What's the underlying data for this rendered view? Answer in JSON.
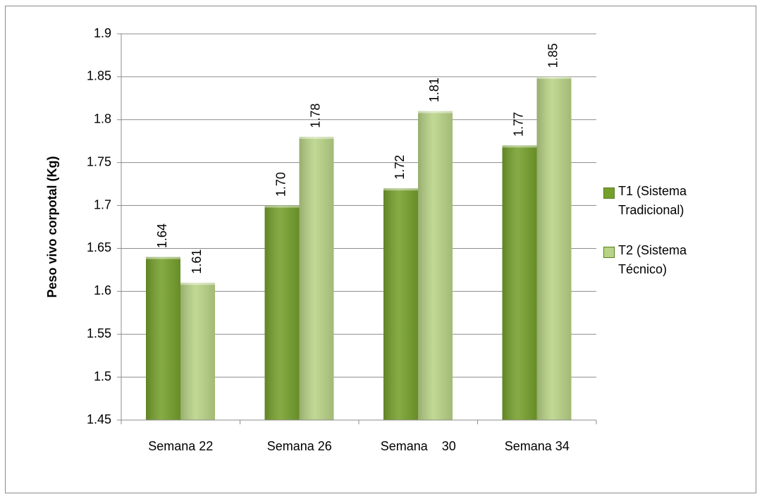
{
  "chart_data": {
    "type": "bar",
    "y_label": "Peso vivo corpotal (Kg)",
    "categories": [
      "Semana 22",
      "Semana 26",
      "Semana    30",
      "Semana 34"
    ],
    "series": [
      {
        "name": "T1 (Sistema Tradicional)",
        "color": "#75a02c",
        "values": [
          1.64,
          1.7,
          1.72,
          1.77
        ],
        "value_labels": [
          "1.64",
          "1.70",
          "1.72",
          "1.77"
        ]
      },
      {
        "name": "T2 (Sistema Técnico)",
        "color": "#b8d386",
        "values": [
          1.61,
          1.78,
          1.81,
          1.85
        ],
        "value_labels": [
          "1.61",
          "1.78",
          "1.81",
          "1.85"
        ]
      }
    ],
    "ylim": [
      1.45,
      1.9
    ],
    "yticks": [
      1.45,
      1.5,
      1.55,
      1.6,
      1.65,
      1.7,
      1.75,
      1.8,
      1.85,
      1.9
    ],
    "grid": true,
    "legend": "right"
  }
}
